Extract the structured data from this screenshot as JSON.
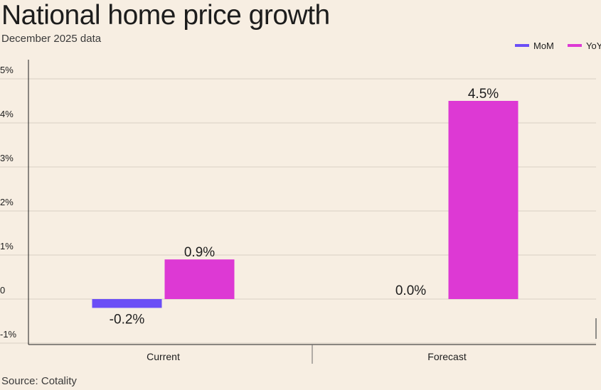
{
  "title": "National home price growth",
  "subtitle": "December 2025 data",
  "source": "Source: Cotality",
  "chart_data": {
    "type": "bar",
    "categories": [
      "Current",
      "Forecast"
    ],
    "series": [
      {
        "name": "MoM",
        "color": "#6b4ef6",
        "values": [
          -0.2,
          0.0
        ],
        "labels": [
          "-0.2%",
          "0.0%"
        ]
      },
      {
        "name": "YoY",
        "color": "#dd39d4",
        "values": [
          0.9,
          4.5
        ],
        "labels": [
          "0.9%",
          "4.5%"
        ]
      }
    ],
    "ylim": [
      -1,
      5
    ],
    "yticks": [
      {
        "value": 5,
        "label": "5%"
      },
      {
        "value": 4,
        "label": "4%"
      },
      {
        "value": 3,
        "label": "3%"
      },
      {
        "value": 2,
        "label": "2%"
      },
      {
        "value": 1,
        "label": "1%"
      },
      {
        "value": 0,
        "label": "0"
      },
      {
        "value": -1,
        "label": "-1%"
      }
    ],
    "grid": true,
    "legend_position": "top-right"
  }
}
